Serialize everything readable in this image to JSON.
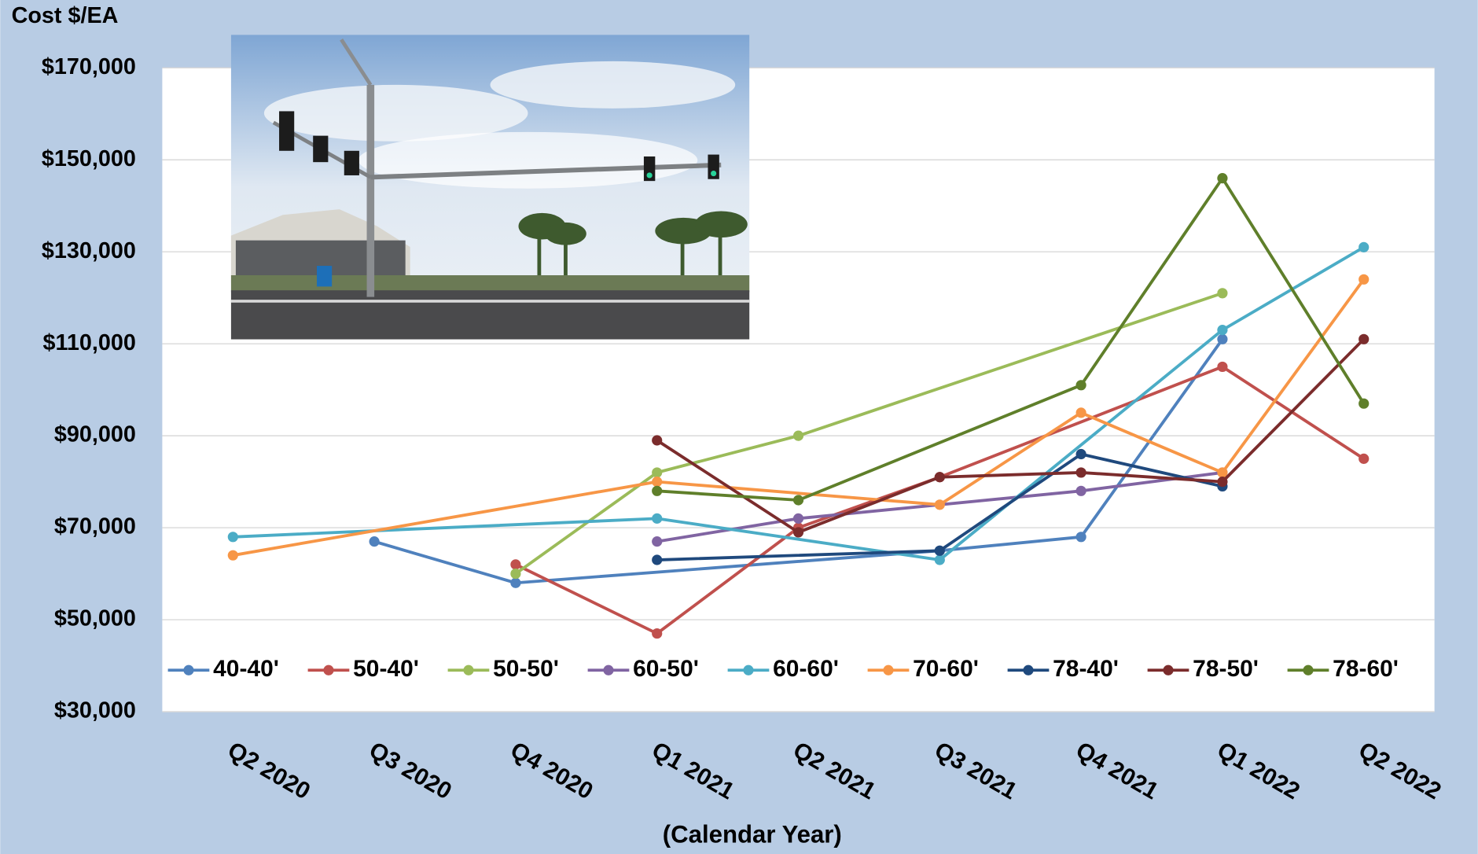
{
  "chart_data": {
    "type": "line",
    "y_axis_title": "Cost $/EA",
    "x_axis_label": "(Calendar Year)",
    "categories": [
      "Q2 2020",
      "Q3 2020",
      "Q4 2020",
      "Q1 2021",
      "Q2 2021",
      "Q3 2021",
      "Q4 2021",
      "Q1 2022",
      "Q2 2022"
    ],
    "span_gaps": true,
    "grid": true,
    "legend": "bottom",
    "ylim": [
      30000,
      170000
    ],
    "yticks": [
      {
        "value": 30000,
        "label": "$30,000"
      },
      {
        "value": 50000,
        "label": "$50,000"
      },
      {
        "value": 70000,
        "label": "$70,000"
      },
      {
        "value": 90000,
        "label": "$90,000"
      },
      {
        "value": 110000,
        "label": "$110,000"
      },
      {
        "value": 130000,
        "label": "$130,000"
      },
      {
        "value": 150000,
        "label": "$150,000"
      },
      {
        "value": 170000,
        "label": "$170,000"
      }
    ],
    "series": [
      {
        "name": "40-40'",
        "color": "#4f81bd",
        "values": [
          null,
          67000,
          58000,
          null,
          null,
          65000,
          68000,
          111000,
          null
        ]
      },
      {
        "name": "50-40'",
        "color": "#c0504d",
        "values": [
          null,
          null,
          62000,
          47000,
          70000,
          81000,
          null,
          105000,
          85000
        ]
      },
      {
        "name": "50-50'",
        "color": "#9bbb59",
        "values": [
          null,
          null,
          60000,
          82000,
          90000,
          null,
          null,
          121000,
          null
        ]
      },
      {
        "name": "60-50'",
        "color": "#8064a2",
        "values": [
          null,
          null,
          null,
          67000,
          72000,
          null,
          78000,
          82000,
          null
        ]
      },
      {
        "name": "60-60'",
        "color": "#4bacc6",
        "values": [
          68000,
          null,
          null,
          72000,
          null,
          63000,
          null,
          113000,
          131000
        ]
      },
      {
        "name": "70-60'",
        "color": "#f79646",
        "values": [
          64000,
          null,
          null,
          80000,
          null,
          75000,
          95000,
          82000,
          124000
        ]
      },
      {
        "name": "78-40'",
        "color": "#1f497d",
        "values": [
          null,
          null,
          null,
          63000,
          null,
          65000,
          86000,
          79000,
          null
        ]
      },
      {
        "name": "78-50'",
        "color": "#7b2c2c",
        "values": [
          null,
          null,
          null,
          89000,
          69000,
          81000,
          82000,
          80000,
          111000
        ]
      },
      {
        "name": "78-60'",
        "color": "#5f7f2a",
        "values": [
          null,
          null,
          null,
          78000,
          76000,
          null,
          101000,
          146000,
          97000
        ]
      }
    ]
  }
}
